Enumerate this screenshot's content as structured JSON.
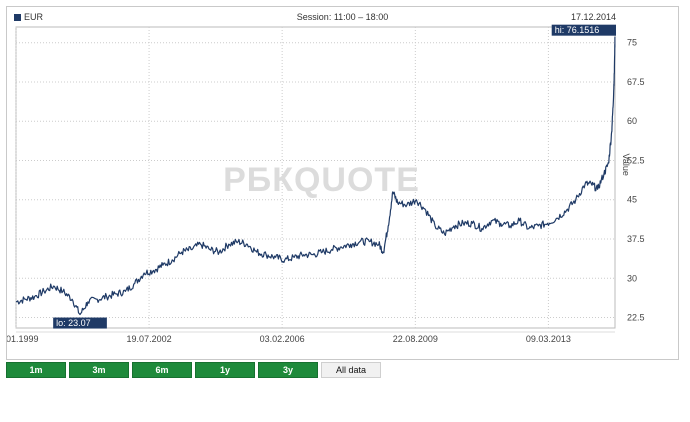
{
  "header": {
    "currency": "EUR",
    "session": "Session: 11:00 – 18:00",
    "date": "17.12.2014"
  },
  "watermark": "РБКQUOTE",
  "colors": {
    "line": "#1f3a66",
    "tab_active_bg": "#1e8a3b",
    "grid": "#cccccc"
  },
  "tabs": [
    {
      "label": "1m",
      "active": false
    },
    {
      "label": "3m",
      "active": false
    },
    {
      "label": "6m",
      "active": false
    },
    {
      "label": "1y",
      "active": false
    },
    {
      "label": "3y",
      "active": false
    },
    {
      "label": "All data",
      "active": true
    }
  ],
  "chart_data": {
    "type": "line",
    "ylabel": "Value",
    "ylim": [
      20.5,
      78
    ],
    "yticks": [
      22.5,
      30,
      37.5,
      45,
      52.5,
      60,
      67.5,
      75
    ],
    "ytick_labels": [
      "22.5",
      "30",
      "37.5",
      "45",
      "52.5",
      "60",
      "67.5",
      "75"
    ],
    "xlim": [
      "1999-01-01",
      "2014-12-17"
    ],
    "xticks": [
      "1999-01-01",
      "2002-07-19",
      "2006-02-03",
      "2009-08-22",
      "2013-03-09"
    ],
    "xtick_labels": [
      "01.01.1999",
      "19.07.2002",
      "03.02.2006",
      "22.08.2009",
      "09.03.2013"
    ],
    "annotations": [
      {
        "label": "hi: 76.1516",
        "x": "2014-12-17",
        "y": 76.1516
      },
      {
        "label": "lo: 23.07",
        "x": "2000-09-15",
        "y": 23.07
      }
    ],
    "series": [
      {
        "x": [
          "1999-01-01",
          "1999-04-01",
          "1999-07-01",
          "1999-10-01",
          "2000-01-01",
          "2000-04-01",
          "2000-07-01",
          "2000-09-15",
          "2000-12-01",
          "2001-03-01",
          "2001-06-01",
          "2001-09-01",
          "2001-12-01",
          "2002-03-01",
          "2002-06-01",
          "2002-09-01",
          "2002-12-01",
          "2003-03-01",
          "2003-06-01",
          "2003-09-01",
          "2003-12-01",
          "2004-03-01",
          "2004-06-01",
          "2004-09-01",
          "2004-12-01",
          "2005-03-01",
          "2005-06-01",
          "2005-09-01",
          "2005-12-01",
          "2006-03-01",
          "2006-06-01",
          "2006-09-01",
          "2006-12-01",
          "2007-03-01",
          "2007-06-01",
          "2007-09-01",
          "2007-12-01",
          "2008-03-01",
          "2008-06-01",
          "2008-09-01",
          "2008-10-15",
          "2008-12-01",
          "2009-01-15",
          "2009-03-01",
          "2009-06-01",
          "2009-09-01",
          "2009-12-01",
          "2010-03-01",
          "2010-06-01",
          "2010-09-01",
          "2010-12-01",
          "2011-03-01",
          "2011-06-01",
          "2011-09-01",
          "2011-12-01",
          "2012-03-01",
          "2012-06-01",
          "2012-09-01",
          "2012-12-01",
          "2013-03-01",
          "2013-06-01",
          "2013-09-01",
          "2013-12-01",
          "2014-03-01",
          "2014-05-01",
          "2014-07-01",
          "2014-09-01",
          "2014-10-15",
          "2014-11-15",
          "2014-12-01",
          "2014-12-10",
          "2014-12-17"
        ],
        "y": [
          25.5,
          26.0,
          26.5,
          27.5,
          28.5,
          27.5,
          26.0,
          23.07,
          25.5,
          26.0,
          26.5,
          27.0,
          27.5,
          29.0,
          31.0,
          31.5,
          32.5,
          33.5,
          35.0,
          35.5,
          36.5,
          35.5,
          35.0,
          36.5,
          37.0,
          36.5,
          35.0,
          34.5,
          34.0,
          33.5,
          34.0,
          34.5,
          34.5,
          35.0,
          35.5,
          36.0,
          36.5,
          37.0,
          37.0,
          36.5,
          35.0,
          40.0,
          46.5,
          44.5,
          44.0,
          45.0,
          43.0,
          40.0,
          38.5,
          40.0,
          40.5,
          40.5,
          39.5,
          41.0,
          40.5,
          40.0,
          41.0,
          39.5,
          40.0,
          40.5,
          41.5,
          43.0,
          45.0,
          48.0,
          48.0,
          47.0,
          50.0,
          52.0,
          58.0,
          64.0,
          69.0,
          76.1516
        ]
      }
    ]
  }
}
